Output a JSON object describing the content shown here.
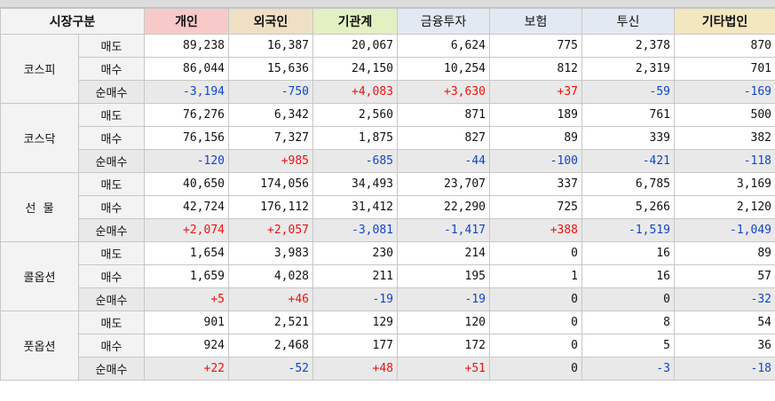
{
  "header": {
    "market": "시장구분",
    "investors": [
      {
        "label": "개인",
        "bg": "#f7c9c9",
        "bold": true
      },
      {
        "label": "외국인",
        "bg": "#efe0c4",
        "bold": true
      },
      {
        "label": "기관계",
        "bg": "#e3f0c2",
        "bold": true
      },
      {
        "label": "금융투자",
        "bg": "#e3e9f2",
        "bold": false
      },
      {
        "label": "보험",
        "bg": "#e3e9f2",
        "bold": false
      },
      {
        "label": "투신",
        "bg": "#e3e9f2",
        "bold": false
      },
      {
        "label": "기타법인",
        "bg": "#f3e7bf",
        "bold": true
      }
    ]
  },
  "colors": {
    "positive": "#ee1111",
    "negative": "#1144cc"
  },
  "markets": [
    {
      "name": "코스피",
      "rows": [
        {
          "label": "매도",
          "values": [
            "89,238",
            "16,387",
            "20,067",
            "6,624",
            "775",
            "2,378",
            "870"
          ]
        },
        {
          "label": "매수",
          "values": [
            "86,044",
            "15,636",
            "24,150",
            "10,254",
            "812",
            "2,319",
            "701"
          ]
        },
        {
          "label": "순매수",
          "values": [
            "-3,194",
            "-750",
            "+4,083",
            "+3,630",
            "+37",
            "-59",
            "-169"
          ]
        }
      ]
    },
    {
      "name": "코스닥",
      "rows": [
        {
          "label": "매도",
          "values": [
            "76,276",
            "6,342",
            "2,560",
            "871",
            "189",
            "761",
            "500"
          ]
        },
        {
          "label": "매수",
          "values": [
            "76,156",
            "7,327",
            "1,875",
            "827",
            "89",
            "339",
            "382"
          ]
        },
        {
          "label": "순매수",
          "values": [
            "-120",
            "+985",
            "-685",
            "-44",
            "-100",
            "-421",
            "-118"
          ]
        }
      ]
    },
    {
      "name": "선  물",
      "rows": [
        {
          "label": "매도",
          "values": [
            "40,650",
            "174,056",
            "34,493",
            "23,707",
            "337",
            "6,785",
            "3,169"
          ]
        },
        {
          "label": "매수",
          "values": [
            "42,724",
            "176,112",
            "31,412",
            "22,290",
            "725",
            "5,266",
            "2,120"
          ]
        },
        {
          "label": "순매수",
          "values": [
            "+2,074",
            "+2,057",
            "-3,081",
            "-1,417",
            "+388",
            "-1,519",
            "-1,049"
          ]
        }
      ]
    },
    {
      "name": "콜옵션",
      "rows": [
        {
          "label": "매도",
          "values": [
            "1,654",
            "3,983",
            "230",
            "214",
            "0",
            "16",
            "89"
          ]
        },
        {
          "label": "매수",
          "values": [
            "1,659",
            "4,028",
            "211",
            "195",
            "1",
            "16",
            "57"
          ]
        },
        {
          "label": "순매수",
          "values": [
            "+5",
            "+46",
            "-19",
            "-19",
            "0",
            "0",
            "-32"
          ]
        }
      ]
    },
    {
      "name": "풋옵션",
      "rows": [
        {
          "label": "매도",
          "values": [
            "901",
            "2,521",
            "129",
            "120",
            "0",
            "8",
            "54"
          ]
        },
        {
          "label": "매수",
          "values": [
            "924",
            "2,468",
            "177",
            "172",
            "0",
            "5",
            "36"
          ]
        },
        {
          "label": "순매수",
          "values": [
            "+22",
            "-52",
            "+48",
            "+51",
            "0",
            "-3",
            "-18"
          ]
        }
      ]
    }
  ]
}
